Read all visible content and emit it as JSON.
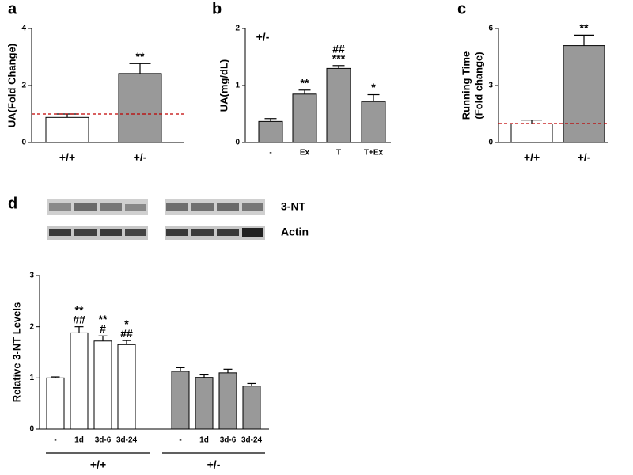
{
  "chart_data": [
    {
      "type": "bar",
      "panel": "a",
      "ylabel": [
        "UA(Fold Change)"
      ],
      "categories": [
        "+/+",
        "+/-"
      ],
      "values": [
        0.88,
        2.42
      ],
      "errors": [
        0.12,
        0.35
      ],
      "colors": [
        "#ffffff",
        "#999999"
      ],
      "annotations": [
        [],
        [
          "**"
        ]
      ],
      "reference_line": 1,
      "reference_color": "#c00000",
      "ylim": [
        0,
        4
      ],
      "yticks": [
        0,
        2,
        4
      ]
    },
    {
      "type": "bar",
      "panel": "b",
      "ylabel": [
        "UA(mg/dL)"
      ],
      "note": "+/-",
      "categories": [
        "-",
        "Ex",
        "T",
        "T+Ex"
      ],
      "values": [
        0.37,
        0.85,
        1.3,
        0.72
      ],
      "errors": [
        0.05,
        0.07,
        0.05,
        0.12
      ],
      "colors": [
        "#999999",
        "#999999",
        "#999999",
        "#999999"
      ],
      "annotations": [
        [],
        [
          "**"
        ],
        [
          "***",
          "##"
        ],
        [
          "*"
        ]
      ],
      "ylim": [
        0,
        2
      ],
      "yticks": [
        0,
        1,
        2
      ]
    },
    {
      "type": "bar",
      "panel": "c",
      "ylabel": [
        "Running Time",
        "(Fold change)"
      ],
      "categories": [
        "+/+",
        "+/-"
      ],
      "values": [
        0.98,
        5.1
      ],
      "errors": [
        0.2,
        0.55
      ],
      "colors": [
        "#ffffff",
        "#999999"
      ],
      "annotations": [
        [],
        [
          "**"
        ]
      ],
      "reference_line": 1,
      "reference_color": "#c00000",
      "ylim": [
        0,
        6
      ],
      "yticks": [
        0,
        3,
        6
      ]
    },
    {
      "type": "grouped",
      "panel": "d",
      "ylabel": [
        "Relative 3-NT Levels"
      ],
      "blot_labels": [
        "3-NT",
        "Actin"
      ],
      "categories": [
        "-",
        "1d",
        "3d-6",
        "3d-24"
      ],
      "series": [
        {
          "name": "+/+",
          "color": "#ffffff",
          "values": [
            1.0,
            1.88,
            1.72,
            1.65
          ],
          "errors": [
            0.02,
            0.12,
            0.1,
            0.08
          ],
          "annotations": [
            [],
            [
              "##",
              "**"
            ],
            [
              "#",
              "**"
            ],
            [
              "##",
              "*"
            ]
          ]
        },
        {
          "name": "+/-",
          "color": "#999999",
          "values": [
            1.13,
            1.01,
            1.1,
            0.84
          ],
          "errors": [
            0.07,
            0.05,
            0.07,
            0.05
          ],
          "annotations": [
            [],
            [],
            [],
            []
          ]
        }
      ],
      "ylim": [
        0,
        3
      ],
      "yticks": [
        0,
        1,
        2,
        3
      ]
    }
  ]
}
